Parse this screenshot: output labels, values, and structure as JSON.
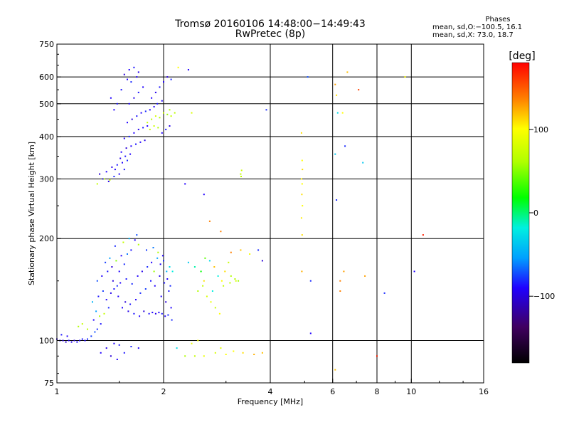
{
  "header": {
    "title_line1": "Tromsø 20160106 14:48:00−14:49:43",
    "title_line2": "RwPretec (8p)"
  },
  "phases_box": {
    "title": "Phases",
    "line1": "mean, sd,O:−100.5, 16.1",
    "line2": "mean, sd,X:  73.0, 18.7"
  },
  "colorbar": {
    "label": "[deg]",
    "range": [
      -180,
      180
    ],
    "ticks": [
      {
        "value": 100,
        "label": "100"
      },
      {
        "value": 0,
        "label": "0"
      },
      {
        "value": -100,
        "label": "−100"
      }
    ]
  },
  "chart_data": {
    "type": "scatter",
    "title": "Tromsø 20160106 14:48:00−14:49:43",
    "subtitle": "RwPretec (8p)",
    "xlabel": "Frequency [MHz]",
    "ylabel": "Stationary phase Virtual Height [km]",
    "x_scale": "log",
    "y_scale": "log",
    "xlim": [
      1,
      16
    ],
    "ylim": [
      75,
      750
    ],
    "x_ticks": [
      {
        "value": 1,
        "label": "1"
      },
      {
        "value": 2,
        "label": "2"
      },
      {
        "value": 4,
        "label": "4"
      },
      {
        "value": 6,
        "label": "6"
      },
      {
        "value": 8,
        "label": "8"
      },
      {
        "value": 10,
        "label": "10"
      },
      {
        "value": 16,
        "label": "16"
      }
    ],
    "y_ticks": [
      {
        "value": 75,
        "label": "75"
      },
      {
        "value": 100,
        "label": "100"
      },
      {
        "value": 200,
        "label": "200"
      },
      {
        "value": 300,
        "label": "300"
      },
      {
        "value": 400,
        "label": "400"
      },
      {
        "value": 500,
        "label": "500"
      },
      {
        "value": 600,
        "label": "600"
      },
      {
        "value": 750,
        "label": "750"
      }
    ],
    "x_grid": [
      2,
      4,
      6,
      8,
      10
    ],
    "y_grid": [
      100,
      200,
      300,
      400,
      500,
      600
    ],
    "color_encoding": "phase [deg]",
    "points": [
      [
        1.0,
        101,
        -110
      ],
      [
        1.02,
        100,
        -105
      ],
      [
        1.04,
        100,
        -108
      ],
      [
        1.06,
        99,
        -112
      ],
      [
        1.08,
        100,
        -100
      ],
      [
        1.1,
        99,
        -104
      ],
      [
        1.12,
        100,
        -110
      ],
      [
        1.14,
        99,
        -98
      ],
      [
        1.16,
        100,
        -102
      ],
      [
        1.18,
        101,
        -95
      ],
      [
        1.2,
        100,
        -100
      ],
      [
        1.22,
        101,
        -90
      ],
      [
        1.03,
        104,
        -95
      ],
      [
        1.07,
        103,
        -100
      ],
      [
        1.25,
        103,
        -85
      ],
      [
        1.28,
        106,
        -80
      ],
      [
        1.3,
        108,
        -90
      ],
      [
        1.33,
        112,
        -95
      ],
      [
        1.27,
        115,
        -100
      ],
      [
        1.32,
        118,
        60
      ],
      [
        1.29,
        122,
        -60
      ],
      [
        1.36,
        120,
        70
      ],
      [
        1.4,
        125,
        -90
      ],
      [
        1.26,
        130,
        -50
      ],
      [
        1.31,
        135,
        -95
      ],
      [
        1.38,
        132,
        -100
      ],
      [
        1.35,
        140,
        -85
      ],
      [
        1.42,
        138,
        -105
      ],
      [
        1.45,
        142,
        -95
      ],
      [
        1.48,
        145,
        -90
      ],
      [
        1.3,
        150,
        -80
      ],
      [
        1.34,
        155,
        -100
      ],
      [
        1.39,
        160,
        -95
      ],
      [
        1.43,
        165,
        -110
      ],
      [
        1.5,
        160,
        -100
      ],
      [
        1.55,
        168,
        -90
      ],
      [
        1.37,
        170,
        -85
      ],
      [
        1.41,
        175,
        -60
      ],
      [
        1.47,
        172,
        50
      ],
      [
        1.52,
        178,
        -100
      ],
      [
        1.58,
        180,
        -70
      ],
      [
        1.62,
        185,
        -95
      ],
      [
        1.46,
        190,
        -90
      ],
      [
        1.54,
        195,
        70
      ],
      [
        1.6,
        200,
        -50
      ],
      [
        1.66,
        198,
        -100
      ],
      [
        1.7,
        192,
        60
      ],
      [
        1.68,
        205,
        -80
      ],
      [
        1.44,
        150,
        -110
      ],
      [
        1.51,
        148,
        -100
      ],
      [
        1.57,
        152,
        -95
      ],
      [
        1.63,
        147,
        -90
      ],
      [
        1.69,
        155,
        -100
      ],
      [
        1.74,
        160,
        -105
      ],
      [
        1.49,
        135,
        -100
      ],
      [
        1.56,
        130,
        -110
      ],
      [
        1.61,
        128,
        -95
      ],
      [
        1.67,
        132,
        -100
      ],
      [
        1.72,
        138,
        -90
      ],
      [
        1.78,
        142,
        -85
      ],
      [
        1.53,
        125,
        -100
      ],
      [
        1.59,
        122,
        -105
      ],
      [
        1.65,
        120,
        -95
      ],
      [
        1.71,
        118,
        -100
      ],
      [
        1.76,
        122,
        -110
      ],
      [
        1.82,
        120,
        -95
      ],
      [
        1.86,
        121,
        -100
      ],
      [
        1.9,
        120,
        -105
      ],
      [
        1.94,
        121,
        -100
      ],
      [
        1.98,
        120,
        -95
      ],
      [
        2.02,
        118,
        -100
      ],
      [
        2.06,
        119,
        -90
      ],
      [
        1.8,
        165,
        -90
      ],
      [
        1.85,
        170,
        -100
      ],
      [
        1.88,
        160,
        55
      ],
      [
        1.92,
        175,
        -60
      ],
      [
        1.96,
        168,
        -100
      ],
      [
        2.0,
        172,
        -90
      ],
      [
        1.84,
        150,
        -95
      ],
      [
        1.89,
        145,
        -100
      ],
      [
        1.95,
        155,
        -105
      ],
      [
        2.01,
        148,
        -95
      ],
      [
        2.05,
        152,
        -100
      ],
      [
        2.09,
        145,
        -90
      ],
      [
        1.79,
        185,
        -85
      ],
      [
        1.87,
        188,
        -70
      ],
      [
        1.93,
        182,
        60
      ],
      [
        1.99,
        178,
        -100
      ],
      [
        2.04,
        160,
        -50
      ],
      [
        2.08,
        165,
        -30
      ],
      [
        1.97,
        135,
        -100
      ],
      [
        2.03,
        130,
        -110
      ],
      [
        2.07,
        140,
        -95
      ],
      [
        2.1,
        125,
        -100
      ],
      [
        2.12,
        160,
        -20
      ],
      [
        2.11,
        115,
        -90
      ],
      [
        1.15,
        110,
        60
      ],
      [
        1.18,
        112,
        70
      ],
      [
        1.22,
        108,
        65
      ],
      [
        1.45,
        98,
        -100
      ],
      [
        1.5,
        97,
        -95
      ],
      [
        1.62,
        96,
        -90
      ],
      [
        1.7,
        95,
        -100
      ],
      [
        1.38,
        95,
        -105
      ],
      [
        1.33,
        92,
        -100
      ],
      [
        1.42,
        90,
        -110
      ],
      [
        1.48,
        88,
        -100
      ],
      [
        1.55,
        92,
        -95
      ],
      [
        2.18,
        95,
        -30
      ],
      [
        2.3,
        90,
        60
      ],
      [
        2.45,
        90,
        70
      ],
      [
        2.6,
        90,
        90
      ],
      [
        2.8,
        92,
        80
      ],
      [
        3.0,
        91,
        100
      ],
      [
        3.15,
        93,
        100
      ],
      [
        3.35,
        92,
        110
      ],
      [
        3.6,
        91,
        125
      ],
      [
        2.4,
        98,
        90
      ],
      [
        2.5,
        100,
        95
      ],
      [
        2.9,
        95,
        85
      ],
      [
        2.35,
        170,
        -40
      ],
      [
        2.45,
        165,
        -10
      ],
      [
        2.55,
        160,
        20
      ],
      [
        2.62,
        175,
        40
      ],
      [
        2.7,
        172,
        -30
      ],
      [
        2.78,
        165,
        120
      ],
      [
        2.85,
        155,
        -20
      ],
      [
        2.92,
        150,
        100
      ],
      [
        2.98,
        160,
        110
      ],
      [
        3.05,
        170,
        70
      ],
      [
        3.1,
        155,
        60
      ],
      [
        3.2,
        150,
        80
      ],
      [
        2.5,
        140,
        60
      ],
      [
        2.58,
        145,
        70
      ],
      [
        2.65,
        135,
        80
      ],
      [
        2.72,
        130,
        90
      ],
      [
        2.8,
        125,
        70
      ],
      [
        2.88,
        120,
        100
      ],
      [
        2.6,
        150,
        110
      ],
      [
        2.75,
        140,
        -20
      ],
      [
        2.95,
        145,
        70
      ],
      [
        3.08,
        148,
        65
      ],
      [
        3.18,
        152,
        60
      ],
      [
        3.25,
        150,
        55
      ],
      [
        3.1,
        182,
        140
      ],
      [
        3.3,
        185,
        120
      ],
      [
        3.5,
        180,
        95
      ],
      [
        3.8,
        172,
        -110
      ],
      [
        3.7,
        185,
        -90
      ],
      [
        2.9,
        210,
        140
      ],
      [
        1.3,
        290,
        70
      ],
      [
        1.35,
        300,
        -100
      ],
      [
        1.4,
        295,
        -105
      ],
      [
        1.45,
        305,
        -90
      ],
      [
        1.5,
        310,
        -100
      ],
      [
        1.55,
        320,
        -95
      ],
      [
        1.32,
        310,
        -110
      ],
      [
        1.38,
        315,
        -100
      ],
      [
        1.43,
        325,
        -105
      ],
      [
        1.48,
        330,
        -95
      ],
      [
        1.53,
        335,
        -100
      ],
      [
        1.58,
        340,
        -90
      ],
      [
        1.36,
        300,
        60
      ],
      [
        1.41,
        298,
        70
      ],
      [
        1.46,
        320,
        -100
      ],
      [
        1.51,
        345,
        -105
      ],
      [
        1.56,
        350,
        -95
      ],
      [
        1.61,
        355,
        -100
      ],
      [
        1.52,
        360,
        -100
      ],
      [
        1.57,
        370,
        -110
      ],
      [
        1.62,
        375,
        -100
      ],
      [
        1.67,
        380,
        -95
      ],
      [
        1.72,
        385,
        -100
      ],
      [
        1.77,
        390,
        -105
      ],
      [
        1.55,
        395,
        -100
      ],
      [
        1.6,
        400,
        -90
      ],
      [
        1.65,
        410,
        -100
      ],
      [
        1.7,
        420,
        -105
      ],
      [
        1.75,
        425,
        -95
      ],
      [
        1.8,
        430,
        -100
      ],
      [
        1.58,
        440,
        -100
      ],
      [
        1.63,
        450,
        -110
      ],
      [
        1.68,
        460,
        -95
      ],
      [
        1.73,
        470,
        -100
      ],
      [
        1.78,
        475,
        -90
      ],
      [
        1.83,
        480,
        -100
      ],
      [
        1.6,
        500,
        -100
      ],
      [
        1.65,
        520,
        -105
      ],
      [
        1.7,
        540,
        -95
      ],
      [
        1.75,
        560,
        -100
      ],
      [
        1.62,
        580,
        -90
      ],
      [
        1.68,
        600,
        -100
      ],
      [
        1.55,
        610,
        -110
      ],
      [
        1.6,
        630,
        -100
      ],
      [
        1.65,
        640,
        -95
      ],
      [
        1.7,
        620,
        -105
      ],
      [
        1.58,
        590,
        -100
      ],
      [
        1.52,
        550,
        -95
      ],
      [
        1.8,
        440,
        70
      ],
      [
        1.85,
        450,
        65
      ],
      [
        1.9,
        460,
        80
      ],
      [
        1.95,
        455,
        60
      ],
      [
        2.0,
        470,
        75
      ],
      [
        2.05,
        465,
        55
      ],
      [
        2.1,
        460,
        70
      ],
      [
        2.15,
        470,
        65
      ],
      [
        2.08,
        480,
        60
      ],
      [
        1.88,
        490,
        -100
      ],
      [
        1.92,
        500,
        -95
      ],
      [
        1.98,
        510,
        -100
      ],
      [
        1.83,
        420,
        70
      ],
      [
        1.88,
        430,
        75
      ],
      [
        1.93,
        425,
        60
      ],
      [
        1.98,
        410,
        -100
      ],
      [
        2.03,
        420,
        -95
      ],
      [
        2.08,
        430,
        -105
      ],
      [
        1.85,
        520,
        -100
      ],
      [
        1.9,
        540,
        -105
      ],
      [
        1.95,
        560,
        -95
      ],
      [
        2.0,
        580,
        -100
      ],
      [
        2.05,
        600,
        -110
      ],
      [
        2.1,
        590,
        -90
      ],
      [
        1.45,
        480,
        -100
      ],
      [
        1.48,
        500,
        -95
      ],
      [
        1.42,
        520,
        -100
      ],
      [
        2.2,
        640,
        100
      ],
      [
        2.35,
        630,
        -100
      ],
      [
        2.4,
        470,
        80
      ],
      [
        3.3,
        310,
        70
      ],
      [
        3.32,
        318,
        75
      ],
      [
        3.31,
        305,
        65
      ],
      [
        2.6,
        270,
        -100
      ],
      [
        2.7,
        225,
        140
      ],
      [
        2.3,
        290,
        -100
      ],
      [
        3.9,
        480,
        -90
      ],
      [
        4.9,
        410,
        110
      ],
      [
        4.92,
        340,
        100
      ],
      [
        4.93,
        320,
        110
      ],
      [
        4.9,
        300,
        105
      ],
      [
        4.92,
        290,
        100
      ],
      [
        4.91,
        270,
        110
      ],
      [
        4.93,
        250,
        100
      ],
      [
        4.9,
        230,
        105
      ],
      [
        4.92,
        205,
        110
      ],
      [
        4.91,
        160,
        125
      ],
      [
        5.2,
        150,
        -90
      ],
      [
        5.2,
        105,
        -100
      ],
      [
        5.1,
        600,
        -80
      ],
      [
        6.1,
        570,
        130
      ],
      [
        6.15,
        530,
        110
      ],
      [
        6.2,
        470,
        -30
      ],
      [
        6.1,
        355,
        -40
      ],
      [
        6.15,
        260,
        -90
      ],
      [
        6.3,
        150,
        140
      ],
      [
        6.45,
        160,
        130
      ],
      [
        6.5,
        375,
        -90
      ],
      [
        6.4,
        470,
        100
      ],
      [
        6.6,
        620,
        120
      ],
      [
        7.1,
        550,
        160
      ],
      [
        7.3,
        335,
        -40
      ],
      [
        7.4,
        155,
        130
      ],
      [
        8.0,
        90,
        170
      ],
      [
        8.4,
        138,
        -90
      ],
      [
        9.6,
        600,
        100
      ],
      [
        10.2,
        160,
        -100
      ],
      [
        10.8,
        205,
        170
      ],
      [
        6.1,
        82,
        120
      ],
      [
        6.3,
        140,
        140
      ],
      [
        3.8,
        92,
        120
      ]
    ]
  }
}
